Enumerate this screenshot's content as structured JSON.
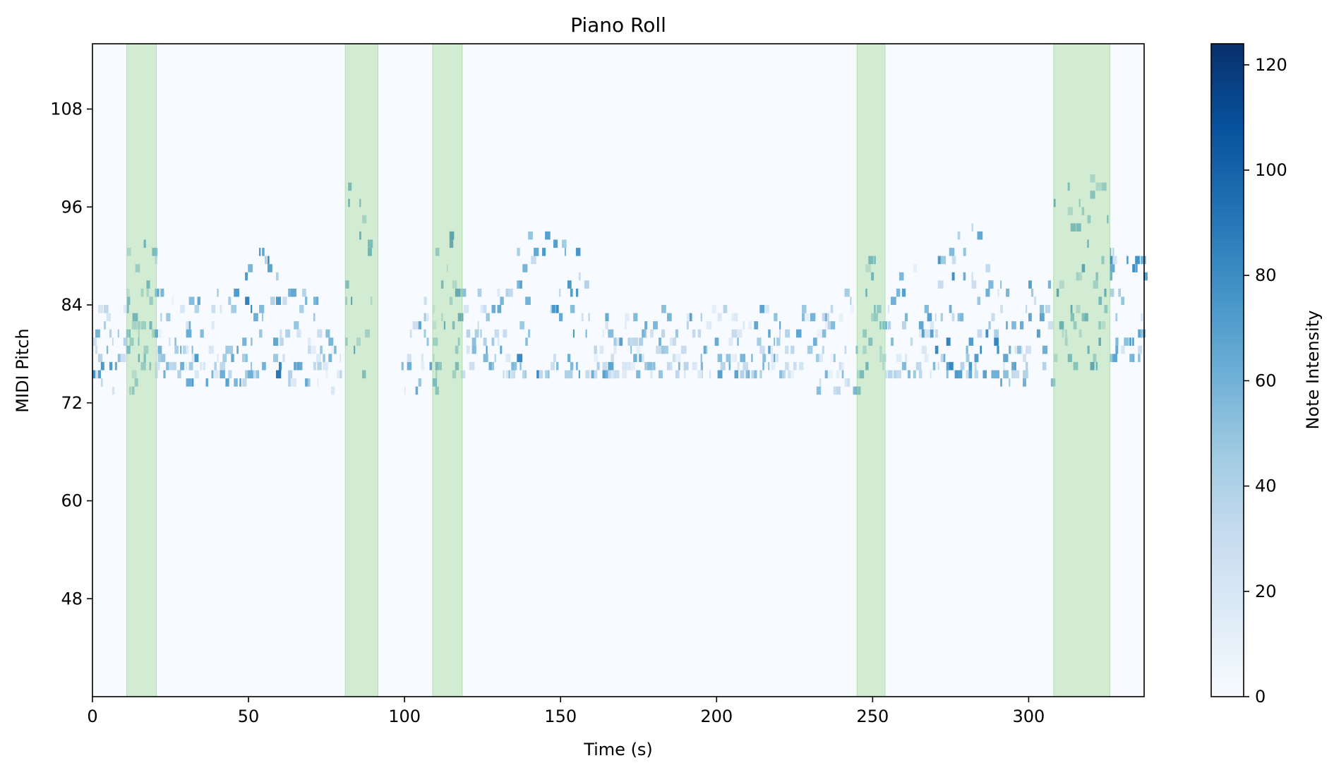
{
  "chart_data": {
    "type": "heatmap",
    "title": "Piano Roll",
    "xlabel": "Time (s)",
    "ylabel": "MIDI Pitch",
    "colorbar_label": "Note Intensity",
    "xlim": [
      0,
      337
    ],
    "ylim": [
      36,
      116
    ],
    "xticks": [
      0,
      50,
      100,
      150,
      200,
      250,
      300
    ],
    "yticks": [
      48,
      60,
      72,
      84,
      96,
      108
    ],
    "colorbar_range": [
      0,
      124
    ],
    "colorbar_ticks": [
      0,
      20,
      40,
      60,
      80,
      100,
      120
    ],
    "colormap": "Blues",
    "background_color": "#f7fbff",
    "highlight_color": "#a1d99b",
    "highlight_regions": [
      [
        11,
        20.5
      ],
      [
        81,
        91.5
      ],
      [
        109,
        118.5
      ],
      [
        245,
        254
      ],
      [
        308,
        326
      ]
    ],
    "note_clusters": [
      {
        "t_start": 0,
        "t_end": 14,
        "pitch_min": 73,
        "pitch_max": 85,
        "vel": 45
      },
      {
        "t_start": 11,
        "t_end": 20,
        "pitch_min": 76,
        "pitch_max": 92,
        "vel": 60
      },
      {
        "t_start": 20,
        "t_end": 30,
        "pitch_min": 75,
        "pitch_max": 86,
        "vel": 35
      },
      {
        "t_start": 30,
        "t_end": 48,
        "pitch_min": 74,
        "pitch_max": 87,
        "vel": 45
      },
      {
        "t_start": 48,
        "t_end": 60,
        "pitch_min": 75,
        "pitch_max": 93,
        "vel": 60
      },
      {
        "t_start": 60,
        "t_end": 72,
        "pitch_min": 74,
        "pitch_max": 85,
        "vel": 40
      },
      {
        "t_start": 72,
        "t_end": 80,
        "pitch_min": 73,
        "pitch_max": 80,
        "vel": 35
      },
      {
        "t_start": 81,
        "t_end": 90,
        "pitch_min": 75,
        "pitch_max": 100,
        "vel": 65
      },
      {
        "t_start": 99,
        "t_end": 110,
        "pitch_min": 73,
        "pitch_max": 84,
        "vel": 40
      },
      {
        "t_start": 109,
        "t_end": 118,
        "pitch_min": 75,
        "pitch_max": 92,
        "vel": 60
      },
      {
        "t_start": 118,
        "t_end": 136,
        "pitch_min": 75,
        "pitch_max": 86,
        "vel": 45
      },
      {
        "t_start": 136,
        "t_end": 158,
        "pitch_min": 75,
        "pitch_max": 93,
        "vel": 55
      },
      {
        "t_start": 158,
        "t_end": 232,
        "pitch_min": 75,
        "pitch_max": 83,
        "vel": 40
      },
      {
        "t_start": 232,
        "t_end": 245,
        "pitch_min": 73,
        "pitch_max": 85,
        "vel": 35
      },
      {
        "t_start": 245,
        "t_end": 254,
        "pitch_min": 75,
        "pitch_max": 92,
        "vel": 60
      },
      {
        "t_start": 254,
        "t_end": 270,
        "pitch_min": 75,
        "pitch_max": 88,
        "vel": 40
      },
      {
        "t_start": 270,
        "t_end": 290,
        "pitch_min": 75,
        "pitch_max": 93,
        "vel": 55
      },
      {
        "t_start": 290,
        "t_end": 308,
        "pitch_min": 74,
        "pitch_max": 86,
        "vel": 40
      },
      {
        "t_start": 308,
        "t_end": 326,
        "pitch_min": 76,
        "pitch_max": 100,
        "vel": 60
      },
      {
        "t_start": 326,
        "t_end": 337,
        "pitch_min": 77,
        "pitch_max": 90,
        "vel": 50
      }
    ]
  }
}
